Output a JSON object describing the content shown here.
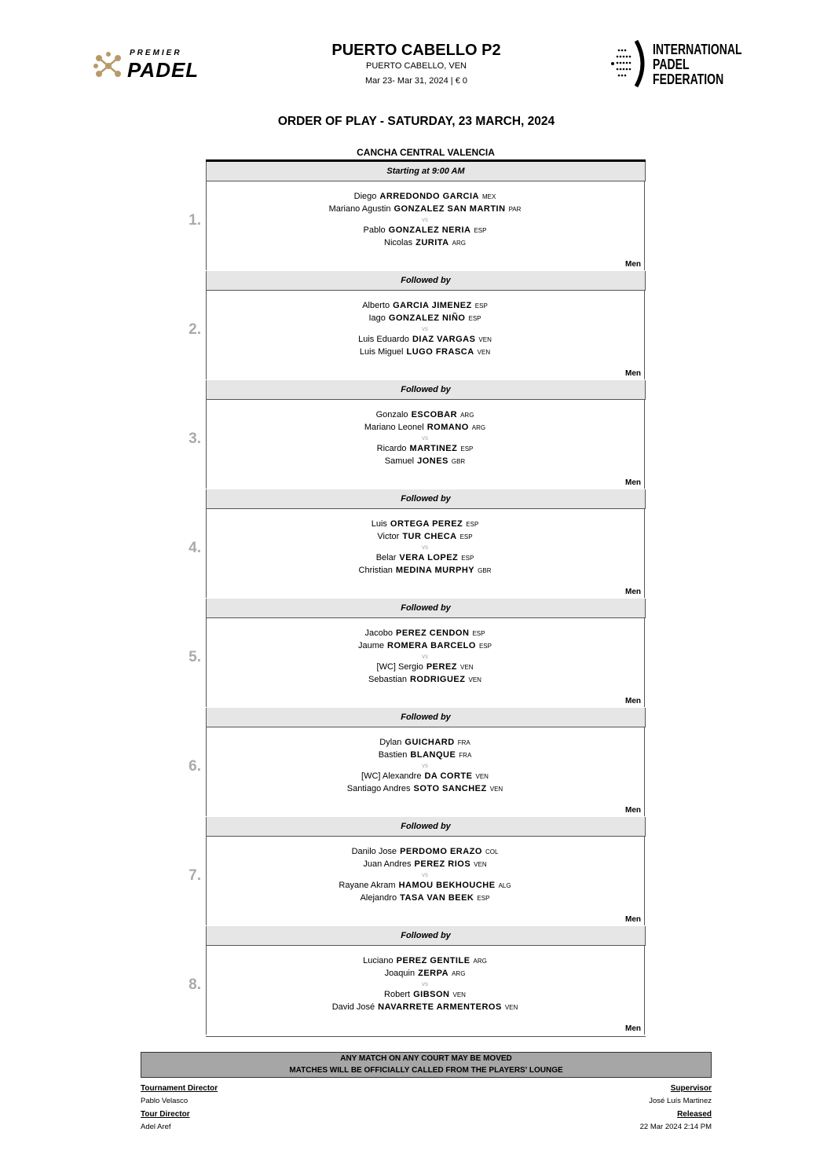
{
  "logos": {
    "left": "PREMIER PADEL",
    "right": "INTERNATIONAL PADEL FEDERATION",
    "accent": "#b89a6a"
  },
  "header": {
    "title": "PUERTO CABELLO P2",
    "location": "PUERTO CABELLO, VEN",
    "dates": "Mar 23- Mar 31, 2024  |  € 0"
  },
  "order_title": "ORDER OF PLAY - SATURDAY, 23 MARCH, 2024",
  "court": "CANCHA CENTRAL VALENCIA",
  "vs_label": "vs",
  "matches": [
    {
      "number": "1.",
      "header": "Starting at 9:00 AM",
      "category": "Men",
      "team1": [
        {
          "first": "Diego",
          "last": "ARREDONDO GARCIA",
          "nat": "MEX"
        },
        {
          "first": "Mariano Agustin",
          "last": "GONZALEZ SAN MARTIN",
          "nat": "PAR"
        }
      ],
      "team2": [
        {
          "first": "Pablo",
          "last": "GONZALEZ NERIA",
          "nat": "ESP"
        },
        {
          "first": "Nicolas",
          "last": "ZURITA",
          "nat": "ARG"
        }
      ]
    },
    {
      "number": "2.",
      "header": "Followed by",
      "category": "Men",
      "team1": [
        {
          "first": "Alberto",
          "last": "GARCIA JIMENEZ",
          "nat": "ESP"
        },
        {
          "first": "Iago",
          "last": "GONZALEZ NIÑO",
          "nat": "ESP"
        }
      ],
      "team2": [
        {
          "first": "Luis Eduardo",
          "last": "DIAZ VARGAS",
          "nat": "VEN"
        },
        {
          "first": "Luis Miguel",
          "last": "LUGO FRASCA",
          "nat": "VEN"
        }
      ]
    },
    {
      "number": "3.",
      "header": "Followed by",
      "category": "Men",
      "team1": [
        {
          "first": "Gonzalo",
          "last": "ESCOBAR",
          "nat": "ARG"
        },
        {
          "first": "Mariano Leonel",
          "last": "ROMANO",
          "nat": "ARG"
        }
      ],
      "team2": [
        {
          "first": "Ricardo",
          "last": "MARTINEZ",
          "nat": "ESP"
        },
        {
          "first": "Samuel",
          "last": "JONES",
          "nat": "GBR"
        }
      ]
    },
    {
      "number": "4.",
      "header": "Followed by",
      "category": "Men",
      "team1": [
        {
          "first": "Luis",
          "last": "ORTEGA PEREZ",
          "nat": "ESP"
        },
        {
          "first": "Victor",
          "last": "TUR CHECA",
          "nat": "ESP"
        }
      ],
      "team2": [
        {
          "first": "Belar",
          "last": "VERA LOPEZ",
          "nat": "ESP"
        },
        {
          "first": "Christian",
          "last": "MEDINA MURPHY",
          "nat": "GBR"
        }
      ]
    },
    {
      "number": "5.",
      "header": "Followed by",
      "category": "Men",
      "team1": [
        {
          "first": "Jacobo",
          "last": "PEREZ CENDON",
          "nat": "ESP"
        },
        {
          "first": "Jaume",
          "last": "ROMERA BARCELO",
          "nat": "ESP"
        }
      ],
      "team2": [
        {
          "first": "[WC]  Sergio",
          "last": "PEREZ",
          "nat": "VEN"
        },
        {
          "first": "Sebastian",
          "last": "RODRIGUEZ",
          "nat": "VEN"
        }
      ]
    },
    {
      "number": "6.",
      "header": "Followed by",
      "category": "Men",
      "team1": [
        {
          "first": "Dylan",
          "last": "GUICHARD",
          "nat": "FRA"
        },
        {
          "first": "Bastien",
          "last": "BLANQUE",
          "nat": "FRA"
        }
      ],
      "team2": [
        {
          "first": "[WC]  Alexandre",
          "last": "DA CORTE",
          "nat": "VEN"
        },
        {
          "first": "Santiago Andres",
          "last": "SOTO SANCHEZ",
          "nat": "VEN"
        }
      ]
    },
    {
      "number": "7.",
      "header": "Followed by",
      "category": "Men",
      "team1": [
        {
          "first": "Danilo Jose",
          "last": "PERDOMO ERAZO",
          "nat": "COL"
        },
        {
          "first": "Juan Andres",
          "last": "PEREZ RIOS",
          "nat": "VEN"
        }
      ],
      "team2": [
        {
          "first": "Rayane Akram",
          "last": "HAMOU BEKHOUCHE",
          "nat": "ALG"
        },
        {
          "first": "Alejandro",
          "last": "TASA VAN BEEK",
          "nat": "ESP"
        }
      ]
    },
    {
      "number": "8.",
      "header": "Followed by",
      "category": "Men",
      "team1": [
        {
          "first": "Luciano",
          "last": "PEREZ GENTILE",
          "nat": "ARG"
        },
        {
          "first": "Joaquin",
          "last": "ZERPA",
          "nat": "ARG"
        }
      ],
      "team2": [
        {
          "first": "Robert",
          "last": "GIBSON",
          "nat": "VEN"
        },
        {
          "first": "David José",
          "last": "NAVARRETE ARMENTEROS",
          "nat": "VEN"
        }
      ]
    }
  ],
  "notice": {
    "line1": "ANY MATCH ON ANY COURT MAY BE MOVED",
    "line2": "MATCHES WILL BE OFFICIALLY CALLED FROM THE PLAYERS' LOUNGE"
  },
  "footer": {
    "tournament_director_label": "Tournament Director",
    "tournament_director": "Pablo Velasco",
    "tour_director_label": "Tour Director",
    "tour_director": "Adel Aref",
    "supervisor_label": "Supervisor",
    "supervisor": "José Luís Martinez",
    "released_label": "Released",
    "released": "22 Mar 2024  2:14 PM"
  }
}
